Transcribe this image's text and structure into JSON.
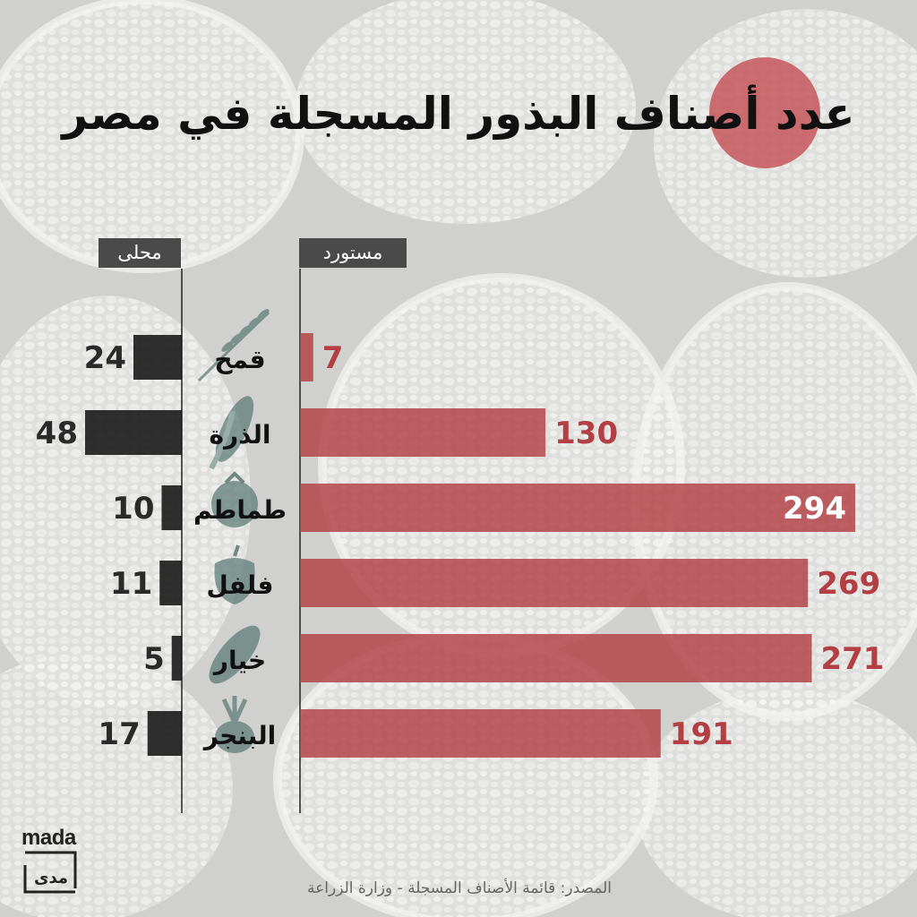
{
  "title": "عدد أصناف البذور المسجلة في مصر",
  "source": "المصدر: قائمة الأصناف المسجلة - وزارة الزراعة",
  "logo": {
    "latin": "mada",
    "arabic": "مدى"
  },
  "colors": {
    "imported": "#b23f43",
    "local": "#1a1a1a",
    "accent_circle": "#c6575a",
    "header_bg": "#4a4a4a"
  },
  "chart_data": {
    "type": "bar",
    "orientation": "horizontal",
    "categories": [
      "قمح",
      "الذرة",
      "طماطم",
      "فلفل",
      "خيار",
      "البنجر"
    ],
    "series": [
      {
        "name": "محلى",
        "values": [
          24,
          48,
          10,
          11,
          5,
          17
        ]
      },
      {
        "name": "مستورد",
        "values": [
          7,
          130,
          294,
          269,
          271,
          191
        ]
      }
    ],
    "icons": [
      "wheat-icon",
      "corn-icon",
      "tomato-icon",
      "pepper-icon",
      "cucumber-icon",
      "beet-icon"
    ]
  }
}
